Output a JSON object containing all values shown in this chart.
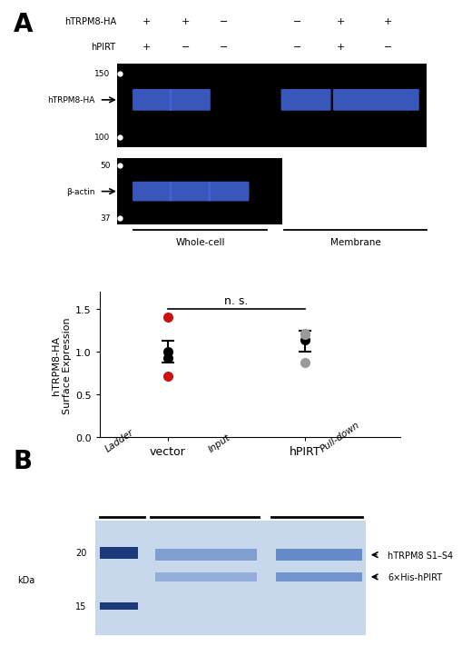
{
  "panel_A_label": "A",
  "panel_B_label": "B",
  "wb_header_row1_label": "hTRPM8-HA",
  "wb_header_row1_vals": [
    "+",
    "+",
    "−",
    "−",
    "+",
    "+"
  ],
  "wb_header_row2_label": "hPIRT",
  "wb_header_row2_vals": [
    "+",
    "−",
    "−",
    "−",
    "+",
    "−"
  ],
  "wb1_marks": [
    "150",
    "100"
  ],
  "wb1_label": "hTRPM8-HA",
  "wb2_marks": [
    "50",
    "37"
  ],
  "wb2_label": "β-actin",
  "whole_cell_label": "Whole-cell",
  "membrane_label": "Membrane",
  "scatter_ns_text": "n. s.",
  "scatter_xlabel_cats": [
    "vector",
    "hPIRT"
  ],
  "scatter_ylabel": "hTRPM8-HA\nSurface Expression",
  "scatter_ylim": [
    0.0,
    1.7
  ],
  "scatter_yticks": [
    0.0,
    0.5,
    1.0,
    1.5
  ],
  "vector_mean": 1.0,
  "vector_sem_low": 0.87,
  "vector_sem_high": 1.13,
  "vector_black_dots": [
    1.0,
    0.93
  ],
  "vector_red_dots": [
    1.41,
    0.72
  ],
  "hpirt_mean": 1.14,
  "hpirt_sem_low": 1.0,
  "hpirt_sem_high": 1.25,
  "hpirt_black_dots": [
    1.14
  ],
  "hpirt_gray_dots": [
    1.22,
    1.2,
    0.88
  ],
  "gel_bg_color": "#c8d8ec",
  "gel_band_dark": "#1a3a7a",
  "gel_band_blue": "#4470bb",
  "gel_20_label": "20",
  "gel_15_label": "15",
  "gel_kda_label": "kDa",
  "gel_col_labels": [
    "Ladder",
    "Input",
    "Pull-down"
  ],
  "gel_annot1": "hTRPM8 S1–S4",
  "gel_annot2": "6×His-hPIRT",
  "background_color": "#ffffff",
  "wb_band_color": "#4466dd",
  "wb_bg_color": "#000000"
}
